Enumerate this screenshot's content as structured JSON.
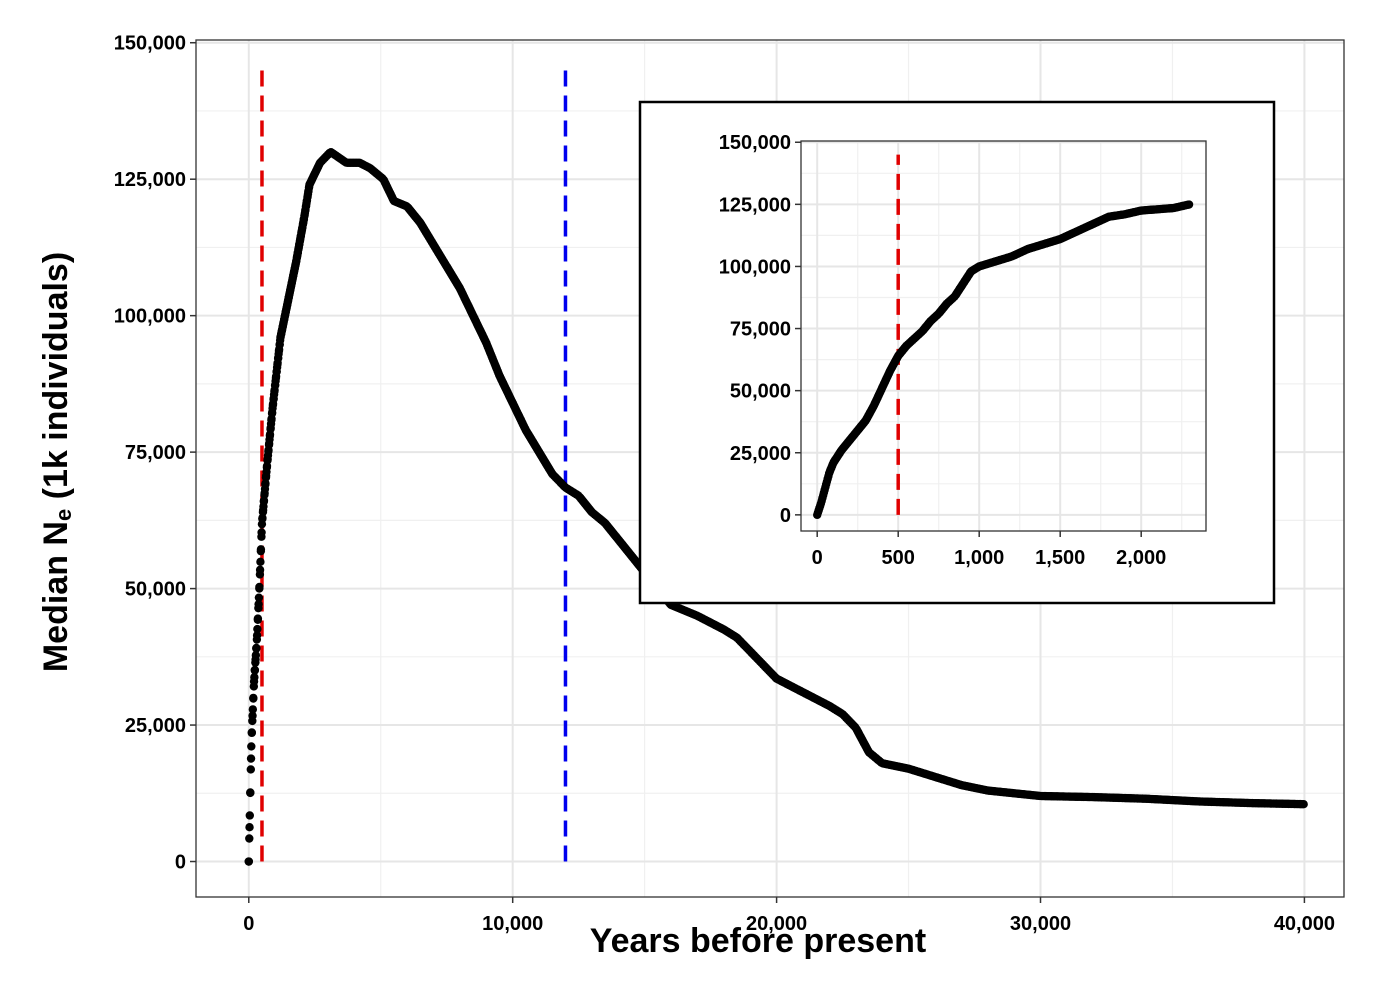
{
  "chart_data": [
    {
      "type": "scatter",
      "xlabel": "Years before present",
      "ylabel_main": "Median N",
      "ylabel_sub": "e",
      "ylabel_tail": " (1k individuals)",
      "xlim": [
        -2000,
        41500
      ],
      "ylim": [
        -6500,
        150500
      ],
      "xticks": [
        0,
        10000,
        20000,
        30000,
        40000
      ],
      "xtick_labels": [
        "0",
        "10,000",
        "20,000",
        "30,000",
        "40,000"
      ],
      "yticks": [
        0,
        25000,
        50000,
        75000,
        100000,
        125000,
        150000
      ],
      "ytick_labels": [
        "0",
        "25,000",
        "50,000",
        "75,000",
        "100,000",
        "125,000",
        "150,000"
      ],
      "grid": true,
      "point_color": "#000000",
      "vlines": [
        {
          "x": 500,
          "y_range": [
            0,
            145000
          ],
          "color": "#e00000",
          "style": "dashed"
        },
        {
          "x": 12000,
          "y_range": [
            0,
            145000
          ],
          "color": "#0000ee",
          "style": "dashed"
        }
      ],
      "series_keypoints": {
        "x": [
          0,
          100,
          200,
          300,
          400,
          500,
          700,
          900,
          1200,
          1500,
          1800,
          2100,
          2300,
          2700,
          3100,
          3400,
          3700,
          4200,
          4600,
          5100,
          5500,
          6000,
          6500,
          7000,
          7500,
          8000,
          8500,
          9000,
          9500,
          10000,
          10500,
          11000,
          11500,
          12000,
          12500,
          13000,
          13500,
          14000,
          14500,
          15000,
          15500,
          16000,
          17000,
          18000,
          18500,
          19000,
          19500,
          20000,
          21000,
          22000,
          22500,
          23000,
          23500,
          24000,
          24500,
          25000,
          26000,
          27000,
          28000,
          29000,
          30000,
          32000,
          34000,
          36000,
          38000,
          40000
        ],
        "y": [
          0,
          22000,
          33000,
          40000,
          50000,
          62000,
          73000,
          83000,
          96000,
          103000,
          110000,
          118000,
          124000,
          128000,
          130000,
          129000,
          128000,
          128000,
          127000,
          125000,
          121000,
          120000,
          117000,
          113000,
          109000,
          105000,
          100000,
          95000,
          89000,
          84000,
          79000,
          75000,
          71000,
          68500,
          67000,
          64000,
          62000,
          59000,
          56000,
          53000,
          50000,
          47000,
          45000,
          42500,
          41000,
          38500,
          36000,
          33500,
          31000,
          28500,
          27000,
          24500,
          20000,
          18000,
          17500,
          17000,
          15500,
          14000,
          13000,
          12500,
          12000,
          11800,
          11500,
          11000,
          10700,
          10500
        ]
      }
    },
    {
      "type": "scatter",
      "inset": true,
      "xlim": [
        -100,
        2400
      ],
      "ylim": [
        -6500,
        150500
      ],
      "xticks": [
        0,
        500,
        1000,
        1500,
        2000
      ],
      "xtick_labels": [
        "0",
        "500",
        "1,000",
        "1,500",
        "2,000"
      ],
      "yticks": [
        0,
        25000,
        50000,
        75000,
        100000,
        125000,
        150000
      ],
      "ytick_labels": [
        "0",
        "25,000",
        "50,000",
        "75,000",
        "100,000",
        "125,000",
        "150,000"
      ],
      "grid": true,
      "point_color": "#000000",
      "vlines": [
        {
          "x": 500,
          "y_range": [
            0,
            145000
          ],
          "color": "#e00000",
          "style": "dashed"
        }
      ],
      "series_keypoints": {
        "x": [
          0,
          25,
          50,
          75,
          100,
          150,
          200,
          250,
          300,
          350,
          400,
          450,
          500,
          550,
          600,
          650,
          700,
          750,
          800,
          850,
          900,
          950,
          1000,
          1100,
          1200,
          1300,
          1400,
          1500,
          1600,
          1700,
          1800,
          1900,
          2000,
          2100,
          2200,
          2300
        ],
        "y": [
          0,
          5000,
          11000,
          17000,
          21000,
          26000,
          30000,
          34000,
          38000,
          44000,
          51000,
          58000,
          64000,
          68000,
          71000,
          74000,
          78000,
          81000,
          85000,
          88000,
          93000,
          98000,
          100000,
          102000,
          104000,
          107000,
          109000,
          111000,
          114000,
          117000,
          120000,
          121000,
          122500,
          123000,
          123500,
          125000
        ]
      }
    }
  ]
}
